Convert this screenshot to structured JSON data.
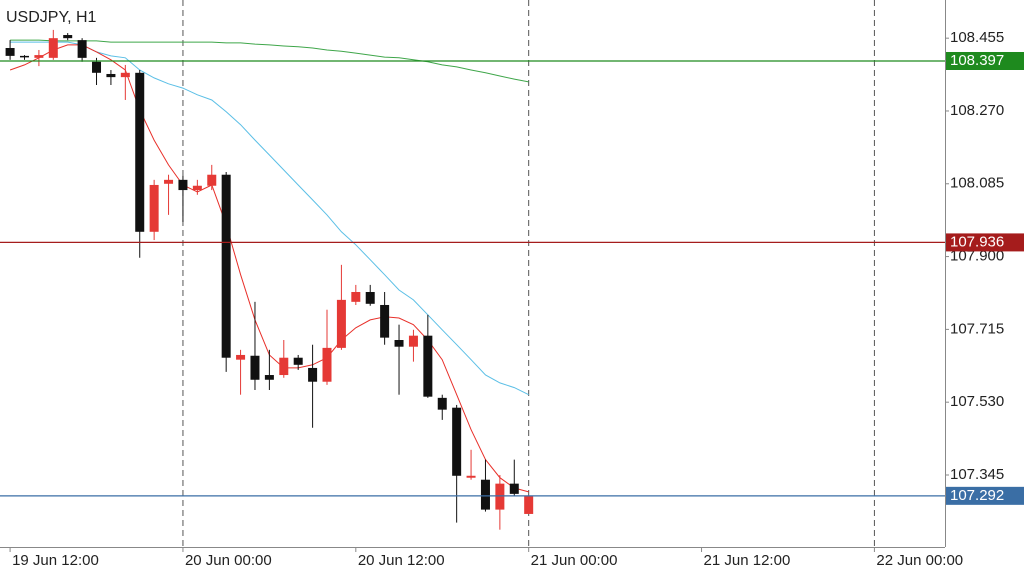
{
  "chart_data": {
    "type": "candlestick",
    "title": "USDJPY, H1",
    "up_color": "#e53935",
    "down_color": "#111111",
    "ohlc": {
      "open": [
        108.43,
        108.41,
        108.405,
        108.405,
        108.463,
        108.45,
        108.395,
        108.364,
        108.356,
        108.367,
        107.963,
        108.085,
        108.095,
        108.069,
        108.08,
        108.108,
        107.638,
        107.648,
        107.599,
        107.599,
        107.643,
        107.617,
        107.582,
        107.668,
        107.785,
        107.81,
        107.777,
        107.688,
        107.671,
        107.699,
        107.541,
        107.516,
        107.338,
        107.333,
        107.257,
        107.323,
        107.246
      ],
      "high": [
        108.45,
        108.412,
        108.425,
        108.476,
        108.468,
        108.455,
        108.405,
        108.374,
        108.387,
        108.374,
        108.095,
        108.108,
        108.105,
        108.095,
        108.133,
        108.115,
        107.663,
        107.785,
        107.663,
        107.688,
        107.65,
        107.676,
        107.765,
        107.879,
        107.828,
        107.828,
        107.81,
        107.727,
        107.714,
        107.752,
        107.549,
        107.523,
        107.409,
        107.384,
        107.345,
        107.384,
        107.292
      ],
      "low": [
        108.4,
        108.4,
        108.384,
        108.4,
        108.45,
        108.395,
        108.336,
        108.336,
        108.298,
        107.897,
        107.942,
        108.006,
        107.988,
        108.057,
        108.069,
        107.607,
        107.549,
        107.561,
        107.561,
        107.592,
        107.612,
        107.465,
        107.574,
        107.663,
        107.777,
        107.775,
        107.676,
        107.549,
        107.633,
        107.541,
        107.485,
        107.224,
        107.333,
        107.252,
        107.206,
        107.292,
        107.246
      ],
      "close": [
        108.41,
        108.407,
        108.412,
        108.455,
        108.455,
        108.405,
        108.367,
        108.356,
        108.367,
        107.963,
        108.082,
        108.095,
        108.069,
        108.08,
        108.108,
        107.643,
        107.65,
        107.587,
        107.587,
        107.643,
        107.625,
        107.582,
        107.668,
        107.79,
        107.81,
        107.78,
        107.694,
        107.671,
        107.699,
        107.544,
        107.511,
        107.343,
        107.343,
        107.257,
        107.323,
        107.297,
        107.292
      ]
    },
    "series": [
      {
        "color": "#3fa64a",
        "values": [
          108.45,
          108.45,
          108.45,
          108.448,
          108.448,
          108.448,
          108.448,
          108.445,
          108.445,
          108.445,
          108.445,
          108.445,
          108.445,
          108.445,
          108.445,
          108.443,
          108.443,
          108.44,
          108.438,
          108.435,
          108.433,
          108.43,
          108.425,
          108.422,
          108.417,
          108.412,
          108.407,
          108.405,
          108.4,
          108.395,
          108.387,
          108.382,
          108.374,
          108.367,
          108.359,
          108.351,
          108.344
        ]
      },
      {
        "color": "#5bbfe6",
        "values": [
          108.445,
          108.445,
          108.445,
          108.445,
          108.445,
          108.438,
          108.42,
          108.41,
          108.405,
          108.374,
          108.354,
          108.339,
          108.328,
          108.311,
          108.298,
          108.268,
          108.235,
          108.196,
          108.158,
          108.12,
          108.082,
          108.044,
          108.006,
          107.963,
          107.93,
          107.892,
          107.854,
          107.815,
          107.79,
          107.752,
          107.714,
          107.676,
          107.638,
          107.599,
          107.579,
          107.567,
          107.549
        ]
      },
      {
        "color": "#e8302a",
        "values": [
          108.374,
          108.387,
          108.405,
          108.425,
          108.438,
          108.438,
          108.42,
          108.4,
          108.374,
          108.273,
          108.196,
          108.133,
          108.082,
          108.064,
          108.082,
          107.981,
          107.854,
          107.739,
          107.65,
          107.617,
          107.617,
          107.625,
          107.643,
          107.688,
          107.719,
          107.739,
          107.747,
          107.744,
          107.727,
          107.688,
          107.638,
          107.549,
          107.46,
          107.384,
          107.338,
          107.312,
          107.302
        ]
      }
    ],
    "levels": [
      {
        "value": 108.397,
        "color": "#1e8a1e"
      },
      {
        "value": 107.936,
        "color": "#a51c1c"
      },
      {
        "value": 107.292,
        "color": "#3a6ea5"
      }
    ],
    "xlim": [
      -0.7,
      64.9
    ],
    "xticks": [
      {
        "value": 0,
        "label": "19 Jun 12:00"
      },
      {
        "value": 12,
        "label": "20 Jun 00:00"
      },
      {
        "value": 24,
        "label": "20 Jun 12:00"
      },
      {
        "value": 36,
        "label": "21 Jun 00:00"
      },
      {
        "value": 48,
        "label": "21 Jun 12:00"
      },
      {
        "value": 60,
        "label": "22 Jun 00:00"
      }
    ],
    "ylim": [
      107.162,
      108.552
    ],
    "yticks": [
      108.455,
      {
        "value": 108.27,
        "label": "108.270"
      },
      108.085,
      {
        "value": 107.9,
        "label": "107.900"
      },
      107.715,
      {
        "value": 107.53,
        "label": "107.530"
      },
      107.345
    ]
  }
}
